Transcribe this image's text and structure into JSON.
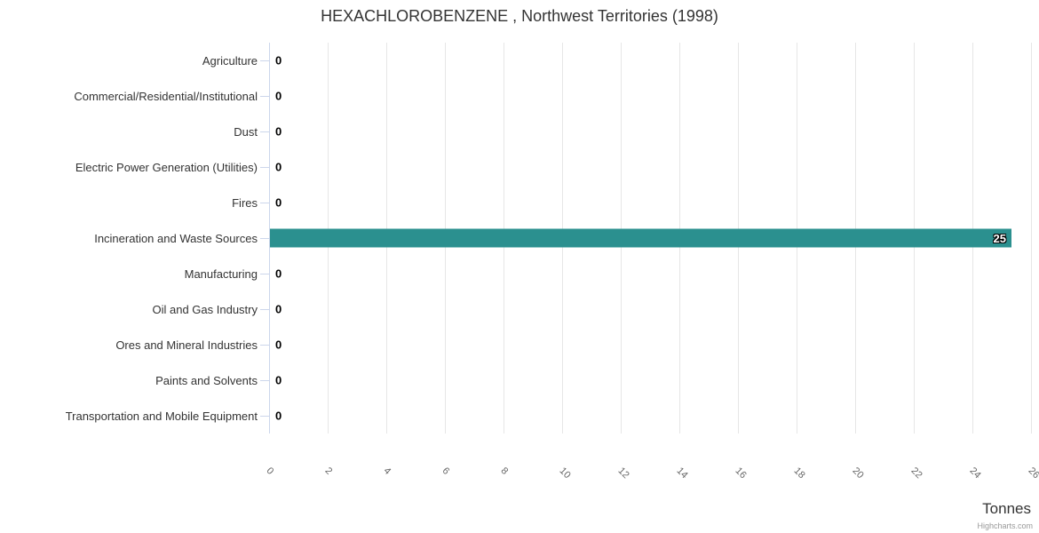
{
  "header": {
    "title": "HEXACHLOROBENZENE , Northwest Territories (1998)"
  },
  "chart_data": {
    "type": "bar",
    "orientation": "horizontal",
    "title": "HEXACHLOROBENZENE , Northwest Territories (1998)",
    "categories": [
      "Agriculture",
      "Commercial/Residential/Institutional",
      "Dust",
      "Electric Power Generation (Utilities)",
      "Fires",
      "Incineration and Waste Sources",
      "Manufacturing",
      "Oil and Gas Industry",
      "Ores and Mineral Industries",
      "Paints and Solvents",
      "Transportation and Mobile Equipment"
    ],
    "values": [
      0,
      0,
      0,
      0,
      0,
      25,
      0,
      0,
      0,
      0,
      0
    ],
    "data_labels": [
      "0",
      "0",
      "0",
      "0",
      "0",
      "25",
      "0",
      "0",
      "0",
      "0",
      "0"
    ],
    "xlabel": "Tonnes",
    "ylabel": "",
    "xlim": [
      0,
      26
    ],
    "xticks": [
      0,
      2,
      4,
      6,
      8,
      10,
      12,
      14,
      16,
      18,
      20,
      22,
      24,
      26
    ],
    "grid": true,
    "legend": false
  },
  "footer": {
    "credit": "Highcharts.com"
  },
  "colors": {
    "bar": "#2b908f",
    "grid": "#e6e6e6",
    "axis": "#ccd6eb",
    "title_text": "#333333",
    "category_text": "#333333",
    "tick_text": "#666666",
    "credit_text": "#999999"
  }
}
